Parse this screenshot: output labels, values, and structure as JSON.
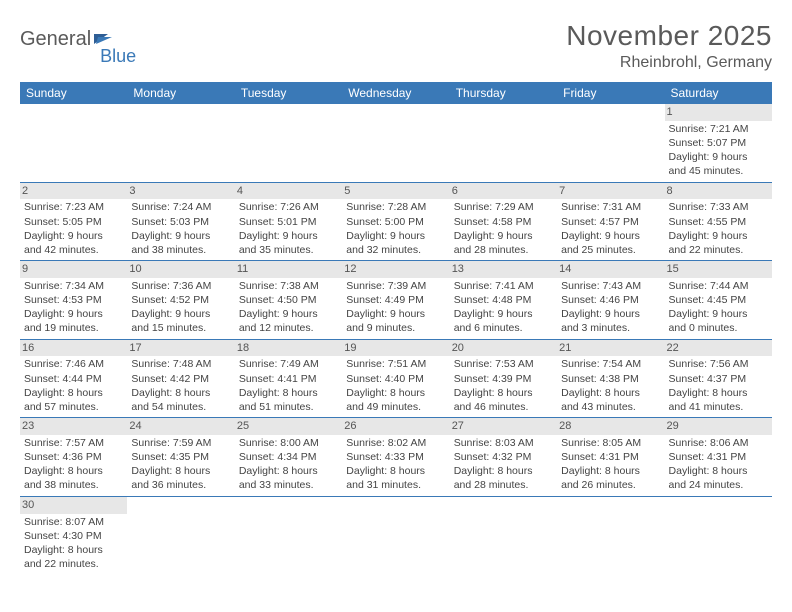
{
  "logo": {
    "word1": "General",
    "word2": "Blue",
    "text1_color": "#5a5a5a",
    "text2_color": "#3a79b7"
  },
  "title": "November 2025",
  "location": "Rheinbrohl, Germany",
  "colors": {
    "header_bg": "#3a79b7",
    "header_text": "#ffffff",
    "daynum_bg": "#e7e7e7",
    "row_divider": "#3a79b7",
    "body_text": "#444444",
    "title_text": "#5a5a5a"
  },
  "day_headers": [
    "Sunday",
    "Monday",
    "Tuesday",
    "Wednesday",
    "Thursday",
    "Friday",
    "Saturday"
  ],
  "weeks": [
    [
      null,
      null,
      null,
      null,
      null,
      null,
      {
        "n": "1",
        "sunrise": "7:21 AM",
        "sunset": "5:07 PM",
        "dl1": "Daylight: 9 hours",
        "dl2": "and 45 minutes."
      }
    ],
    [
      {
        "n": "2",
        "sunrise": "7:23 AM",
        "sunset": "5:05 PM",
        "dl1": "Daylight: 9 hours",
        "dl2": "and 42 minutes."
      },
      {
        "n": "3",
        "sunrise": "7:24 AM",
        "sunset": "5:03 PM",
        "dl1": "Daylight: 9 hours",
        "dl2": "and 38 minutes."
      },
      {
        "n": "4",
        "sunrise": "7:26 AM",
        "sunset": "5:01 PM",
        "dl1": "Daylight: 9 hours",
        "dl2": "and 35 minutes."
      },
      {
        "n": "5",
        "sunrise": "7:28 AM",
        "sunset": "5:00 PM",
        "dl1": "Daylight: 9 hours",
        "dl2": "and 32 minutes."
      },
      {
        "n": "6",
        "sunrise": "7:29 AM",
        "sunset": "4:58 PM",
        "dl1": "Daylight: 9 hours",
        "dl2": "and 28 minutes."
      },
      {
        "n": "7",
        "sunrise": "7:31 AM",
        "sunset": "4:57 PM",
        "dl1": "Daylight: 9 hours",
        "dl2": "and 25 minutes."
      },
      {
        "n": "8",
        "sunrise": "7:33 AM",
        "sunset": "4:55 PM",
        "dl1": "Daylight: 9 hours",
        "dl2": "and 22 minutes."
      }
    ],
    [
      {
        "n": "9",
        "sunrise": "7:34 AM",
        "sunset": "4:53 PM",
        "dl1": "Daylight: 9 hours",
        "dl2": "and 19 minutes."
      },
      {
        "n": "10",
        "sunrise": "7:36 AM",
        "sunset": "4:52 PM",
        "dl1": "Daylight: 9 hours",
        "dl2": "and 15 minutes."
      },
      {
        "n": "11",
        "sunrise": "7:38 AM",
        "sunset": "4:50 PM",
        "dl1": "Daylight: 9 hours",
        "dl2": "and 12 minutes."
      },
      {
        "n": "12",
        "sunrise": "7:39 AM",
        "sunset": "4:49 PM",
        "dl1": "Daylight: 9 hours",
        "dl2": "and 9 minutes."
      },
      {
        "n": "13",
        "sunrise": "7:41 AM",
        "sunset": "4:48 PM",
        "dl1": "Daylight: 9 hours",
        "dl2": "and 6 minutes."
      },
      {
        "n": "14",
        "sunrise": "7:43 AM",
        "sunset": "4:46 PM",
        "dl1": "Daylight: 9 hours",
        "dl2": "and 3 minutes."
      },
      {
        "n": "15",
        "sunrise": "7:44 AM",
        "sunset": "4:45 PM",
        "dl1": "Daylight: 9 hours",
        "dl2": "and 0 minutes."
      }
    ],
    [
      {
        "n": "16",
        "sunrise": "7:46 AM",
        "sunset": "4:44 PM",
        "dl1": "Daylight: 8 hours",
        "dl2": "and 57 minutes."
      },
      {
        "n": "17",
        "sunrise": "7:48 AM",
        "sunset": "4:42 PM",
        "dl1": "Daylight: 8 hours",
        "dl2": "and 54 minutes."
      },
      {
        "n": "18",
        "sunrise": "7:49 AM",
        "sunset": "4:41 PM",
        "dl1": "Daylight: 8 hours",
        "dl2": "and 51 minutes."
      },
      {
        "n": "19",
        "sunrise": "7:51 AM",
        "sunset": "4:40 PM",
        "dl1": "Daylight: 8 hours",
        "dl2": "and 49 minutes."
      },
      {
        "n": "20",
        "sunrise": "7:53 AM",
        "sunset": "4:39 PM",
        "dl1": "Daylight: 8 hours",
        "dl2": "and 46 minutes."
      },
      {
        "n": "21",
        "sunrise": "7:54 AM",
        "sunset": "4:38 PM",
        "dl1": "Daylight: 8 hours",
        "dl2": "and 43 minutes."
      },
      {
        "n": "22",
        "sunrise": "7:56 AM",
        "sunset": "4:37 PM",
        "dl1": "Daylight: 8 hours",
        "dl2": "and 41 minutes."
      }
    ],
    [
      {
        "n": "23",
        "sunrise": "7:57 AM",
        "sunset": "4:36 PM",
        "dl1": "Daylight: 8 hours",
        "dl2": "and 38 minutes."
      },
      {
        "n": "24",
        "sunrise": "7:59 AM",
        "sunset": "4:35 PM",
        "dl1": "Daylight: 8 hours",
        "dl2": "and 36 minutes."
      },
      {
        "n": "25",
        "sunrise": "8:00 AM",
        "sunset": "4:34 PM",
        "dl1": "Daylight: 8 hours",
        "dl2": "and 33 minutes."
      },
      {
        "n": "26",
        "sunrise": "8:02 AM",
        "sunset": "4:33 PM",
        "dl1": "Daylight: 8 hours",
        "dl2": "and 31 minutes."
      },
      {
        "n": "27",
        "sunrise": "8:03 AM",
        "sunset": "4:32 PM",
        "dl1": "Daylight: 8 hours",
        "dl2": "and 28 minutes."
      },
      {
        "n": "28",
        "sunrise": "8:05 AM",
        "sunset": "4:31 PM",
        "dl1": "Daylight: 8 hours",
        "dl2": "and 26 minutes."
      },
      {
        "n": "29",
        "sunrise": "8:06 AM",
        "sunset": "4:31 PM",
        "dl1": "Daylight: 8 hours",
        "dl2": "and 24 minutes."
      }
    ],
    [
      {
        "n": "30",
        "sunrise": "8:07 AM",
        "sunset": "4:30 PM",
        "dl1": "Daylight: 8 hours",
        "dl2": "and 22 minutes."
      },
      null,
      null,
      null,
      null,
      null,
      null
    ]
  ],
  "labels": {
    "sunrise_prefix": "Sunrise: ",
    "sunset_prefix": "Sunset: "
  }
}
